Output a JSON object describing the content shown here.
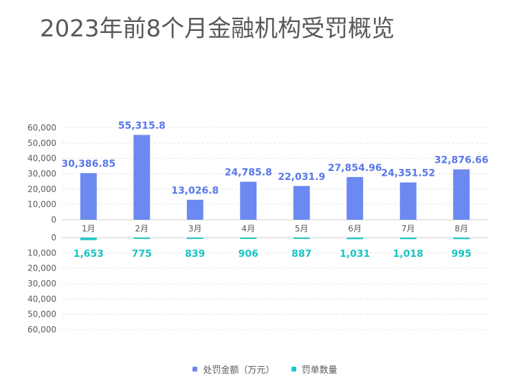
{
  "title": "2023年前8个月金融机构受罚概览",
  "legend": {
    "fine_label": "处罚金额（万元）",
    "count_label": "罚单数量"
  },
  "colors": {
    "fine": "#6b89f0",
    "count": "#1ec8c8",
    "fine_label": "#5878e8",
    "count_label": "#17c4c4",
    "axis_text": "#595959",
    "grid": "#e6e6e6"
  },
  "chart_data": {
    "type": "bar",
    "layout": "mirrored",
    "categories": [
      "1月",
      "2月",
      "3月",
      "4月",
      "5月",
      "6月",
      "7月",
      "8月"
    ],
    "series": [
      {
        "name": "处罚金额（万元）",
        "values": [
          30386.85,
          55315.8,
          13026.8,
          24785.8,
          22031.9,
          27854.96,
          24351.52,
          32876.66
        ],
        "labels": [
          "30,386.85",
          "55,315.8",
          "13,026.8",
          "24,785.8",
          "22,031.9",
          "27,854.96",
          "24,351.52",
          "32,876.66"
        ]
      },
      {
        "name": "罚单数量",
        "values": [
          1653,
          775,
          839,
          906,
          887,
          1031,
          1018,
          995
        ],
        "labels": [
          "1,653",
          "775",
          "839",
          "906",
          "887",
          "1,031",
          "1,018",
          "995"
        ]
      }
    ],
    "top_ticks": [
      "60,000",
      "50,000",
      "40,000",
      "30,000",
      "20,000",
      "10,000",
      "0"
    ],
    "bottom_ticks": [
      "0",
      "10,000",
      "20,000",
      "30,000",
      "40,000",
      "50,000",
      "60,000"
    ],
    "top_ylim": [
      0,
      60000
    ],
    "bottom_ylim": [
      0,
      60000
    ],
    "grid": true,
    "legend_position": "bottom-center"
  }
}
